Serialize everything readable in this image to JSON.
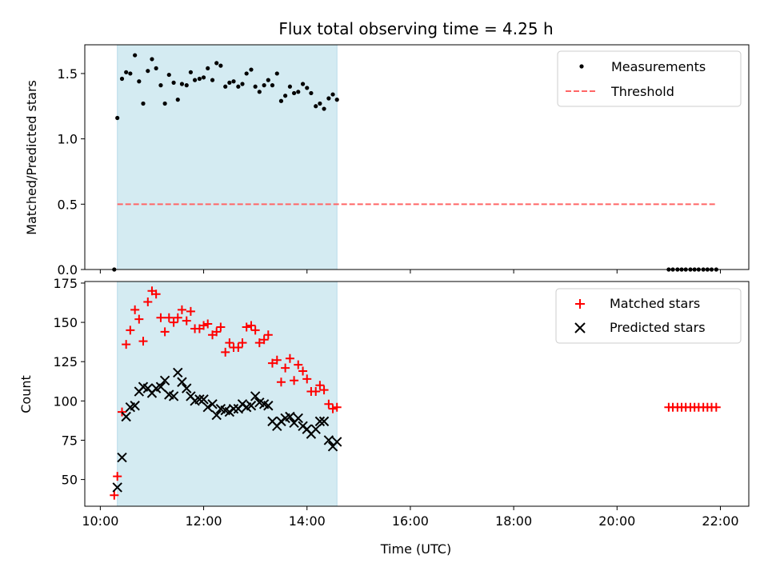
{
  "chart_data": {
    "title": "Flux total observing time = 4.25 h",
    "xlabel": "Time (UTC)",
    "x_unit": "hours UTC",
    "xlim": [
      9.7,
      22.55
    ],
    "x_ticks": [
      10,
      12,
      14,
      16,
      18,
      20,
      22
    ],
    "x_tick_labels": [
      "10:00",
      "12:00",
      "14:00",
      "16:00",
      "18:00",
      "20:00",
      "22:00"
    ],
    "observing_window": {
      "start": 10.33,
      "end": 14.58,
      "color": "#d4ebf2"
    },
    "panels": [
      {
        "type": "scatter",
        "ylabel": "Matched/Predicted stars",
        "ylim": [
          0,
          1.72
        ],
        "y_ticks": [
          0.0,
          0.5,
          1.0,
          1.5
        ],
        "y_tick_labels": [
          "0.0",
          "0.5",
          "1.0",
          "1.5"
        ],
        "legend": {
          "placement": "top-right",
          "entries": [
            "Measurements",
            "Threshold"
          ]
        },
        "series": [
          {
            "name": "Measurements",
            "marker": "dot",
            "color": "#000000",
            "x": [
              10.27,
              10.33,
              10.42,
              10.5,
              10.58,
              10.67,
              10.75,
              10.83,
              10.92,
              11.0,
              11.08,
              11.17,
              11.25,
              11.33,
              11.42,
              11.5,
              11.58,
              11.67,
              11.75,
              11.83,
              11.92,
              12.0,
              12.08,
              12.17,
              12.25,
              12.33,
              12.42,
              12.5,
              12.58,
              12.67,
              12.75,
              12.83,
              12.92,
              13.0,
              13.08,
              13.17,
              13.25,
              13.33,
              13.42,
              13.5,
              13.58,
              13.67,
              13.75,
              13.83,
              13.92,
              14.0,
              14.08,
              14.17,
              14.25,
              14.33,
              14.42,
              14.5,
              14.58,
              21.0,
              21.08,
              21.17,
              21.25,
              21.33,
              21.42,
              21.5,
              21.58,
              21.67,
              21.75,
              21.83,
              21.92
            ],
            "y": [
              0.0,
              1.16,
              1.46,
              1.51,
              1.5,
              1.64,
              1.44,
              1.27,
              1.52,
              1.61,
              1.54,
              1.41,
              1.27,
              1.49,
              1.43,
              1.3,
              1.42,
              1.41,
              1.51,
              1.45,
              1.46,
              1.47,
              1.54,
              1.45,
              1.58,
              1.56,
              1.4,
              1.43,
              1.44,
              1.4,
              1.42,
              1.5,
              1.53,
              1.4,
              1.36,
              1.41,
              1.45,
              1.41,
              1.5,
              1.29,
              1.33,
              1.4,
              1.35,
              1.36,
              1.42,
              1.39,
              1.35,
              1.25,
              1.27,
              1.23,
              1.31,
              1.34,
              1.3,
              0.0,
              0.0,
              0.0,
              0.0,
              0.0,
              0.0,
              0.0,
              0.0,
              0.0,
              0.0,
              0.0,
              0.0
            ]
          },
          {
            "name": "Threshold",
            "marker": "dashed-line",
            "color": "#ff6666",
            "x": [
              10.33,
              21.92
            ],
            "y": [
              0.5,
              0.5
            ]
          }
        ]
      },
      {
        "type": "scatter",
        "ylabel": "Count",
        "ylim": [
          33,
          176
        ],
        "y_ticks": [
          50,
          75,
          100,
          125,
          150,
          175
        ],
        "y_tick_labels": [
          "50",
          "75",
          "100",
          "125",
          "150",
          "175"
        ],
        "legend": {
          "placement": "top-right",
          "entries": [
            "Matched stars",
            "Predicted stars"
          ]
        },
        "series": [
          {
            "name": "Matched stars",
            "marker": "plus",
            "color": "#ff0000",
            "x": [
              10.27,
              10.33,
              10.42,
              10.5,
              10.58,
              10.67,
              10.75,
              10.83,
              10.92,
              11.0,
              11.08,
              11.17,
              11.25,
              11.33,
              11.42,
              11.5,
              11.58,
              11.67,
              11.75,
              11.83,
              11.92,
              12.0,
              12.08,
              12.17,
              12.25,
              12.33,
              12.42,
              12.5,
              12.58,
              12.67,
              12.75,
              12.83,
              12.92,
              13.0,
              13.08,
              13.17,
              13.25,
              13.33,
              13.42,
              13.5,
              13.58,
              13.67,
              13.75,
              13.83,
              13.92,
              14.0,
              14.08,
              14.17,
              14.25,
              14.33,
              14.42,
              14.5,
              14.58,
              21.0,
              21.08,
              21.17,
              21.25,
              21.33,
              21.42,
              21.5,
              21.58,
              21.67,
              21.75,
              21.83,
              21.92
            ],
            "y": [
              40,
              52,
              93,
              136,
              145,
              158,
              152,
              138,
              163,
              170,
              168,
              153,
              144,
              153,
              150,
              153,
              158,
              151,
              157,
              146,
              146,
              148,
              149,
              142,
              144,
              147,
              131,
              137,
              134,
              134,
              137,
              147,
              148,
              145,
              137,
              139,
              142,
              124,
              126,
              112,
              121,
              127,
              113,
              123,
              119,
              114,
              106,
              106,
              110,
              107,
              98,
              95,
              96,
              96,
              96,
              96,
              96,
              96,
              96,
              96,
              96,
              96,
              96,
              96,
              96
            ]
          },
          {
            "name": "Predicted stars",
            "marker": "x",
            "color": "#000000",
            "x": [
              10.33,
              10.42,
              10.5,
              10.58,
              10.67,
              10.75,
              10.83,
              10.92,
              11.0,
              11.08,
              11.17,
              11.25,
              11.33,
              11.42,
              11.5,
              11.58,
              11.67,
              11.75,
              11.83,
              11.92,
              12.0,
              12.08,
              12.17,
              12.25,
              12.33,
              12.42,
              12.5,
              12.58,
              12.67,
              12.75,
              12.83,
              12.92,
              13.0,
              13.08,
              13.17,
              13.25,
              13.33,
              13.42,
              13.5,
              13.58,
              13.67,
              13.75,
              13.83,
              13.92,
              14.0,
              14.08,
              14.17,
              14.25,
              14.33,
              14.42,
              14.5,
              14.58
            ],
            "y": [
              45,
              64,
              90,
              96,
              97,
              106,
              109,
              108,
              105,
              108,
              109,
              113,
              104,
              103,
              118,
              112,
              108,
              103,
              100,
              101,
              101,
              96,
              98,
              91,
              95,
              94,
              93,
              95,
              95,
              98,
              96,
              97,
              103,
              99,
              98,
              97,
              87,
              84,
              87,
              89,
              90,
              86,
              89,
              84,
              82,
              79,
              82,
              87,
              87,
              75,
              71,
              74
            ]
          }
        ]
      }
    ]
  }
}
